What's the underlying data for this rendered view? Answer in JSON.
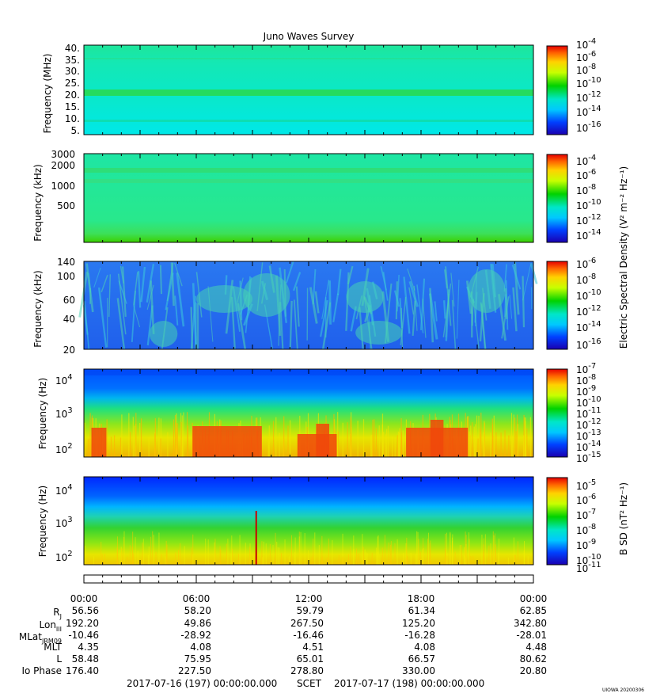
{
  "title": "Juno Waves Survey",
  "colorbar_labels": {
    "electric": "Electric Spectral Density (V² m⁻² Hz⁻¹)",
    "magnetic": "B SD (nT² Hz⁻¹)"
  },
  "panels": [
    {
      "ylabel": "Frequency (MHz)",
      "ticks": [
        "40.",
        "35.",
        "30.",
        "25.",
        "20.",
        "15.",
        "10.",
        "5."
      ],
      "cbar_ticks": [
        "-4",
        "-6",
        "-8",
        "-10",
        "-12",
        "-14",
        "-16"
      ]
    },
    {
      "ylabel": "Frequency (kHz)",
      "ticks": [
        "3000",
        "2000",
        "1000",
        "500"
      ],
      "cbar_ticks": [
        "-4",
        "-6",
        "-8",
        "-10",
        "-12",
        "-14"
      ]
    },
    {
      "ylabel": "Frequency (kHz)",
      "ticks": [
        "140",
        "100",
        "60",
        "40",
        "20"
      ],
      "cbar_ticks": [
        "-6",
        "-8",
        "-10",
        "-12",
        "-14",
        "-16"
      ]
    },
    {
      "ylabel": "Frequency (Hz)",
      "ticks": [
        "4",
        "3",
        "2"
      ],
      "cbar_ticks": [
        "-7",
        "-8",
        "-9",
        "-10",
        "-11",
        "-12",
        "-13",
        "-14",
        "-15"
      ]
    },
    {
      "ylabel": "Frequency (Hz)",
      "ticks": [
        "4",
        "3",
        "2"
      ],
      "cbar_ticks": [
        "-5",
        "-6",
        "-7",
        "-8",
        "-9",
        "-10",
        "-11"
      ]
    }
  ],
  "time_labels": [
    "00:00",
    "06:00",
    "12:00",
    "18:00",
    "00:00"
  ],
  "ephemeris": [
    {
      "label": "R",
      "sub": "J",
      "values": [
        "56.56",
        "58.20",
        "59.79",
        "61.34",
        "62.85"
      ]
    },
    {
      "label": "Lon",
      "sub": "III",
      "values": [
        "192.20",
        "49.86",
        "267.50",
        "125.20",
        "342.80"
      ]
    },
    {
      "label": "MLat",
      "sub": "JRM09",
      "values": [
        "-10.46",
        "-28.92",
        "-16.46",
        "-16.28",
        "-28.01"
      ]
    },
    {
      "label": "MLT",
      "sub": "",
      "values": [
        "4.35",
        "4.08",
        "4.51",
        "4.08",
        "4.48"
      ]
    },
    {
      "label": "L",
      "sub": "",
      "values": [
        "58.48",
        "75.95",
        "65.01",
        "66.57",
        "80.62"
      ]
    },
    {
      "label": "Io Phase",
      "sub": "",
      "values": [
        "176.40",
        "227.50",
        "278.80",
        "330.00",
        "20.80"
      ]
    }
  ],
  "footer": {
    "start": "2017-07-16 (197) 00:00:00.000",
    "scet": "SCET",
    "end": "2017-07-17 (198) 00:00:00.000"
  },
  "credit": "UIOWA 20200306",
  "chart_data": {
    "type": "heatmap",
    "title": "Juno Waves Survey",
    "x_range": [
      "2017-07-16 00:00",
      "2017-07-17 00:00"
    ],
    "panels": [
      {
        "ylabel": "Frequency (MHz)",
        "y_scale": "linear",
        "ylim": [
          4,
          41
        ],
        "colorbar_range_log10": [
          -16.5,
          -3.5
        ],
        "bands_MHz": [
          21.5,
          9
        ]
      },
      {
        "ylabel": "Frequency (kHz)",
        "y_scale": "log",
        "ylim": [
          140,
          3000
        ],
        "colorbar_range_log10": [
          -15,
          -3.5
        ],
        "bands_kHz": [
          1700,
          1250
        ]
      },
      {
        "ylabel": "Frequency (kHz)",
        "y_scale": "log",
        "ylim": [
          20,
          140
        ],
        "colorbar_range_log10": [
          -16.5,
          -5.5
        ]
      },
      {
        "ylabel": "Frequency (Hz)",
        "y_scale": "log",
        "ylim": [
          50,
          20000
        ],
        "colorbar_range_log10": [
          -15,
          -7
        ],
        "intense_intervals_hours": [
          [
            5.8,
            9.5
          ],
          [
            11.4,
            13.5
          ],
          [
            17.2,
            20.5
          ]
        ]
      },
      {
        "ylabel": "Frequency (Hz)",
        "y_scale": "log",
        "ylim": [
          50,
          20000
        ],
        "colorbar_range_log10": [
          -11,
          -4.5
        ],
        "spike_hour": 9.2
      }
    ]
  }
}
